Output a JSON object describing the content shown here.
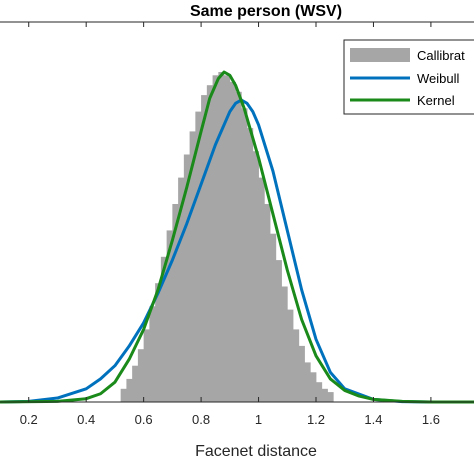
{
  "chart_data": {
    "type": "histogram",
    "title": "Same person (WSV)",
    "xlabel": "Facenet distance",
    "ylabel": "",
    "xlim": [
      0.1,
      1.75
    ],
    "ylim": [
      0,
      1.0
    ],
    "x_ticks": [
      0.2,
      0.4,
      0.6,
      0.8,
      1.0,
      1.2,
      1.4,
      1.6
    ],
    "x_tick_labels": [
      "0.2",
      "0.4",
      "0.6",
      "0.8",
      "1",
      "1.2",
      "1.4",
      "1.6"
    ],
    "grid": false,
    "legend": {
      "placement": "top-right",
      "entries": [
        "Callibrat",
        "Weibull",
        "Kernel"
      ]
    },
    "histogram": {
      "name": "Callibrat",
      "color": "#a6a6a6",
      "bin_width": 0.02,
      "bins": [
        {
          "x": 0.53,
          "y": 0.04
        },
        {
          "x": 0.55,
          "y": 0.07
        },
        {
          "x": 0.57,
          "y": 0.11
        },
        {
          "x": 0.59,
          "y": 0.16
        },
        {
          "x": 0.61,
          "y": 0.22
        },
        {
          "x": 0.63,
          "y": 0.29
        },
        {
          "x": 0.65,
          "y": 0.36
        },
        {
          "x": 0.67,
          "y": 0.44
        },
        {
          "x": 0.69,
          "y": 0.52
        },
        {
          "x": 0.71,
          "y": 0.6
        },
        {
          "x": 0.73,
          "y": 0.68
        },
        {
          "x": 0.75,
          "y": 0.75
        },
        {
          "x": 0.77,
          "y": 0.82
        },
        {
          "x": 0.79,
          "y": 0.88
        },
        {
          "x": 0.81,
          "y": 0.93
        },
        {
          "x": 0.83,
          "y": 0.96
        },
        {
          "x": 0.85,
          "y": 0.99
        },
        {
          "x": 0.87,
          "y": 1.0
        },
        {
          "x": 0.89,
          "y": 0.99
        },
        {
          "x": 0.91,
          "y": 0.97
        },
        {
          "x": 0.93,
          "y": 0.94
        },
        {
          "x": 0.95,
          "y": 0.89
        },
        {
          "x": 0.97,
          "y": 0.83
        },
        {
          "x": 0.99,
          "y": 0.76
        },
        {
          "x": 1.01,
          "y": 0.68
        },
        {
          "x": 1.03,
          "y": 0.6
        },
        {
          "x": 1.05,
          "y": 0.51
        },
        {
          "x": 1.07,
          "y": 0.43
        },
        {
          "x": 1.09,
          "y": 0.35
        },
        {
          "x": 1.11,
          "y": 0.28
        },
        {
          "x": 1.13,
          "y": 0.22
        },
        {
          "x": 1.15,
          "y": 0.17
        },
        {
          "x": 1.17,
          "y": 0.12
        },
        {
          "x": 1.19,
          "y": 0.09
        },
        {
          "x": 1.21,
          "y": 0.06
        },
        {
          "x": 1.23,
          "y": 0.04
        },
        {
          "x": 1.25,
          "y": 0.03
        }
      ]
    },
    "series": [
      {
        "name": "Weibull",
        "color": "#0072bd",
        "x": [
          0.1,
          0.2,
          0.3,
          0.4,
          0.45,
          0.5,
          0.55,
          0.6,
          0.65,
          0.7,
          0.75,
          0.8,
          0.85,
          0.88,
          0.9,
          0.92,
          0.94,
          0.96,
          0.98,
          1.0,
          1.05,
          1.1,
          1.15,
          1.2,
          1.25,
          1.3,
          1.4,
          1.5,
          1.6,
          1.75
        ],
        "y": [
          0.0,
          0.002,
          0.012,
          0.04,
          0.07,
          0.11,
          0.17,
          0.24,
          0.33,
          0.43,
          0.54,
          0.66,
          0.78,
          0.84,
          0.88,
          0.905,
          0.915,
          0.905,
          0.88,
          0.84,
          0.7,
          0.52,
          0.34,
          0.19,
          0.09,
          0.04,
          0.008,
          0.001,
          0.0,
          0.0
        ]
      },
      {
        "name": "Kernel",
        "color": "#1a8a1a",
        "x": [
          0.1,
          0.3,
          0.4,
          0.45,
          0.5,
          0.55,
          0.6,
          0.65,
          0.7,
          0.75,
          0.8,
          0.83,
          0.86,
          0.88,
          0.9,
          0.92,
          0.95,
          1.0,
          1.05,
          1.1,
          1.15,
          1.2,
          1.25,
          1.3,
          1.35,
          1.4,
          1.5,
          1.6,
          1.75
        ],
        "y": [
          0.0,
          0.002,
          0.01,
          0.025,
          0.06,
          0.13,
          0.22,
          0.34,
          0.49,
          0.65,
          0.82,
          0.92,
          0.98,
          1.0,
          0.99,
          0.96,
          0.89,
          0.74,
          0.57,
          0.4,
          0.25,
          0.14,
          0.07,
          0.035,
          0.018,
          0.008,
          0.002,
          0.0,
          0.0
        ]
      }
    ]
  }
}
